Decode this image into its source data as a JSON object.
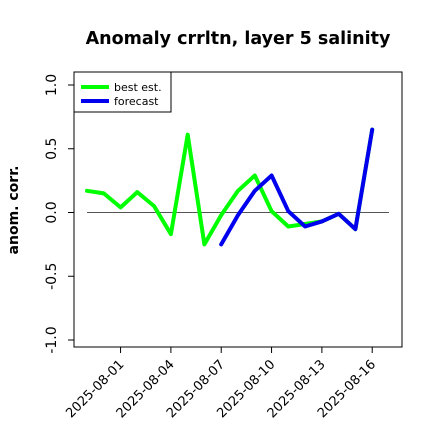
{
  "chart_data": {
    "type": "line",
    "title": "Anomaly crrltn, layer 5 salinity",
    "xlabel": "",
    "ylabel": "anom. corr.",
    "ylim": [
      -1.0,
      1.0
    ],
    "yticks": [
      "-1.0",
      "-0.5",
      "0.0",
      "0.5",
      "1.0"
    ],
    "xticks": [
      "2025-08-01",
      "2025-08-04",
      "2025-08-07",
      "2025-08-10",
      "2025-08-13",
      "2025-08-16"
    ],
    "xtick_colors": [
      "#000000",
      "#000000",
      "#228B22",
      "#000000",
      "#000000",
      "#000000"
    ],
    "x_start": "2025-07-30",
    "x_end": "2025-08-17",
    "reference_line": 0.0,
    "grid": false,
    "legend_position": "top-left",
    "series": [
      {
        "name": "best est.",
        "color": "#00ff00",
        "x": [
          "2025-07-30",
          "2025-07-31",
          "2025-08-01",
          "2025-08-02",
          "2025-08-03",
          "2025-08-04",
          "2025-08-05",
          "2025-08-06",
          "2025-08-07",
          "2025-08-08",
          "2025-08-09",
          "2025-08-10",
          "2025-08-11",
          "2025-08-12",
          "2025-08-13",
          "2025-08-14",
          "2025-08-15",
          "2025-08-16"
        ],
        "values": [
          0.17,
          0.15,
          0.04,
          0.16,
          0.05,
          -0.17,
          0.61,
          -0.25,
          -0.02,
          0.17,
          0.29,
          0.01,
          -0.11,
          -0.09,
          -0.07,
          -0.01,
          -0.13,
          0.65
        ]
      },
      {
        "name": "forecast",
        "color": "#0000ee",
        "x": [
          "2025-08-07",
          "2025-08-08",
          "2025-08-09",
          "2025-08-10",
          "2025-08-11",
          "2025-08-12",
          "2025-08-13",
          "2025-08-14",
          "2025-08-15",
          "2025-08-16"
        ],
        "values": [
          -0.25,
          -0.02,
          0.17,
          0.29,
          0.01,
          -0.11,
          -0.07,
          -0.01,
          -0.13,
          0.65
        ]
      }
    ]
  }
}
